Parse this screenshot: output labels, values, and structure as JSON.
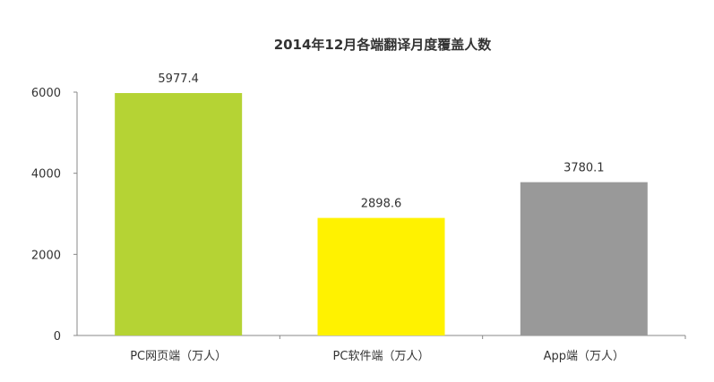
{
  "chart_data": {
    "type": "bar",
    "title": "2014年12月各端翻译月度覆盖人数",
    "xlabel": "",
    "ylabel": "",
    "categories": [
      "PC网页端（万人）",
      "PC软件端（万人）",
      "App端（万人）"
    ],
    "values": [
      5977.4,
      2898.6,
      3780.1
    ],
    "data_labels": [
      "5977.4",
      "2898.6",
      "3780.1"
    ],
    "colors": [
      "#b5d334",
      "#fff200",
      "#999999"
    ],
    "ylim": [
      0,
      6000
    ],
    "yticks": [
      0,
      2000,
      4000,
      6000
    ],
    "ytick_labels": [
      "0",
      "2000",
      "4000",
      "6000"
    ],
    "grid": false,
    "legend": "none"
  }
}
